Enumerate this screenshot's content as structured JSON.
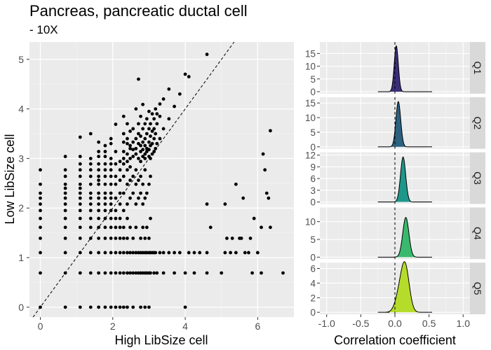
{
  "figure": {
    "title": "Pancreas, pancreatic ductal cell",
    "subtitle": "- 10X"
  },
  "chart_data": [
    {
      "type": "scatter",
      "xlabel": "High LibSize cell",
      "ylabel": "Low LibSize cell",
      "xlim": [
        -0.3,
        7.0
      ],
      "ylim": [
        -0.2,
        5.35
      ],
      "xticks": [
        "0",
        "2",
        "4",
        "6"
      ],
      "yticks": [
        "0",
        "1",
        "2",
        "3",
        "4",
        "5"
      ],
      "reference_line": "y = x (dashed)",
      "grid": true,
      "note": "approximate reconstruction of point cloud",
      "points": [
        [
          0,
          0
        ],
        [
          0,
          0.69
        ],
        [
          0,
          1.1
        ],
        [
          0,
          1.39
        ],
        [
          0,
          1.61
        ],
        [
          0,
          1.79
        ],
        [
          0,
          1.95
        ],
        [
          0,
          2.08
        ],
        [
          0,
          2.2
        ],
        [
          0,
          2.3
        ],
        [
          0,
          2.48
        ],
        [
          0,
          2.77
        ],
        [
          0.69,
          0
        ],
        [
          0.69,
          0.69
        ],
        [
          0.69,
          1.1
        ],
        [
          0.69,
          1.39
        ],
        [
          0.69,
          1.61
        ],
        [
          0.69,
          1.79
        ],
        [
          0.69,
          1.95
        ],
        [
          0.69,
          2.08
        ],
        [
          0.69,
          2.2
        ],
        [
          0.69,
          2.3
        ],
        [
          0.69,
          2.4
        ],
        [
          0.69,
          2.48
        ],
        [
          0.69,
          2.64
        ],
        [
          0.69,
          2.77
        ],
        [
          0.69,
          3.04
        ],
        [
          1.1,
          0
        ],
        [
          1.1,
          0.69
        ],
        [
          1.1,
          1.1
        ],
        [
          1.1,
          1.39
        ],
        [
          1.1,
          1.61
        ],
        [
          1.1,
          1.79
        ],
        [
          1.1,
          1.95
        ],
        [
          1.1,
          2.08
        ],
        [
          1.1,
          2.2
        ],
        [
          1.1,
          2.3
        ],
        [
          1.1,
          2.4
        ],
        [
          1.1,
          2.48
        ],
        [
          1.1,
          2.64
        ],
        [
          1.1,
          2.77
        ],
        [
          1.1,
          2.89
        ],
        [
          1.1,
          3.04
        ],
        [
          1.1,
          3.43
        ],
        [
          1.39,
          0
        ],
        [
          1.39,
          0.69
        ],
        [
          1.39,
          1.1
        ],
        [
          1.39,
          1.39
        ],
        [
          1.39,
          1.61
        ],
        [
          1.39,
          1.79
        ],
        [
          1.39,
          1.95
        ],
        [
          1.39,
          2.08
        ],
        [
          1.39,
          2.2
        ],
        [
          1.39,
          2.3
        ],
        [
          1.39,
          2.48
        ],
        [
          1.39,
          2.64
        ],
        [
          1.39,
          2.77
        ],
        [
          1.39,
          2.89
        ],
        [
          1.39,
          3.0
        ],
        [
          1.39,
          3.5
        ],
        [
          1.61,
          0
        ],
        [
          1.61,
          0.69
        ],
        [
          1.61,
          1.1
        ],
        [
          1.61,
          1.39
        ],
        [
          1.61,
          1.61
        ],
        [
          1.61,
          1.79
        ],
        [
          1.61,
          1.95
        ],
        [
          1.61,
          2.08
        ],
        [
          1.61,
          2.2
        ],
        [
          1.61,
          2.3
        ],
        [
          1.61,
          2.48
        ],
        [
          1.61,
          2.56
        ],
        [
          1.61,
          2.64
        ],
        [
          1.61,
          2.77
        ],
        [
          1.61,
          2.89
        ],
        [
          1.61,
          3.04
        ],
        [
          1.61,
          3.14
        ],
        [
          1.61,
          3.33
        ],
        [
          1.79,
          0
        ],
        [
          1.79,
          0.69
        ],
        [
          1.79,
          1.1
        ],
        [
          1.79,
          1.39
        ],
        [
          1.79,
          1.61
        ],
        [
          1.79,
          1.79
        ],
        [
          1.79,
          1.95
        ],
        [
          1.79,
          2.08
        ],
        [
          1.79,
          2.2
        ],
        [
          1.79,
          2.3
        ],
        [
          1.79,
          2.48
        ],
        [
          1.79,
          2.64
        ],
        [
          1.79,
          2.77
        ],
        [
          1.79,
          2.89
        ],
        [
          1.79,
          3.04
        ],
        [
          1.79,
          3.14
        ],
        [
          1.79,
          3.26
        ],
        [
          1.95,
          0
        ],
        [
          1.95,
          0.69
        ],
        [
          1.95,
          1.1
        ],
        [
          1.95,
          1.39
        ],
        [
          1.95,
          1.61
        ],
        [
          1.95,
          1.79
        ],
        [
          1.95,
          1.95
        ],
        [
          1.95,
          2.08
        ],
        [
          1.95,
          2.2
        ],
        [
          1.95,
          2.3
        ],
        [
          1.95,
          2.48
        ],
        [
          1.95,
          2.64
        ],
        [
          1.95,
          2.77
        ],
        [
          1.95,
          2.89
        ],
        [
          1.95,
          3.0
        ],
        [
          1.95,
          3.3
        ],
        [
          1.95,
          3.4
        ],
        [
          2.08,
          0
        ],
        [
          2.08,
          0.69
        ],
        [
          2.08,
          1.1
        ],
        [
          2.08,
          1.39
        ],
        [
          2.08,
          1.61
        ],
        [
          2.08,
          1.79
        ],
        [
          2.08,
          1.95
        ],
        [
          2.08,
          2.2
        ],
        [
          2.08,
          2.48
        ],
        [
          2.08,
          2.64
        ],
        [
          2.08,
          2.89
        ],
        [
          2.08,
          3.14
        ],
        [
          2.08,
          3.69
        ],
        [
          2.2,
          0
        ],
        [
          2.2,
          0.69
        ],
        [
          2.2,
          1.1
        ],
        [
          2.2,
          1.39
        ],
        [
          2.2,
          1.61
        ],
        [
          2.2,
          1.79
        ],
        [
          2.2,
          2.08
        ],
        [
          2.2,
          2.3
        ],
        [
          2.2,
          2.56
        ],
        [
          2.2,
          2.77
        ],
        [
          2.2,
          2.94
        ],
        [
          2.3,
          0
        ],
        [
          2.3,
          0.69
        ],
        [
          2.3,
          1.1
        ],
        [
          2.3,
          1.39
        ],
        [
          2.3,
          1.61
        ],
        [
          2.3,
          1.95
        ],
        [
          2.3,
          2.3
        ],
        [
          2.3,
          2.64
        ],
        [
          2.3,
          2.89
        ],
        [
          2.3,
          3.0
        ],
        [
          2.3,
          3.14
        ],
        [
          2.3,
          3.33
        ],
        [
          2.3,
          3.5
        ],
        [
          2.3,
          3.85
        ],
        [
          2.4,
          0
        ],
        [
          2.4,
          0.69
        ],
        [
          2.4,
          1.1
        ],
        [
          2.4,
          1.39
        ],
        [
          2.4,
          1.79
        ],
        [
          2.4,
          2.08
        ],
        [
          2.4,
          2.48
        ],
        [
          2.4,
          2.77
        ],
        [
          2.4,
          2.94
        ],
        [
          2.4,
          3.09
        ],
        [
          2.4,
          3.3
        ],
        [
          2.4,
          3.4
        ],
        [
          2.4,
          3.7
        ],
        [
          2.48,
          0.69
        ],
        [
          2.48,
          1.1
        ],
        [
          2.48,
          1.61
        ],
        [
          2.48,
          2.2
        ],
        [
          2.48,
          2.56
        ],
        [
          2.48,
          2.83
        ],
        [
          2.48,
          3.0
        ],
        [
          2.48,
          3.2
        ],
        [
          2.48,
          3.26
        ],
        [
          2.48,
          3.55
        ],
        [
          2.56,
          0
        ],
        [
          2.56,
          0.69
        ],
        [
          2.56,
          1.1
        ],
        [
          2.56,
          1.39
        ],
        [
          2.56,
          2.3
        ],
        [
          2.56,
          2.64
        ],
        [
          2.56,
          3.04
        ],
        [
          2.56,
          3.18
        ],
        [
          2.56,
          3.33
        ],
        [
          2.56,
          3.6
        ],
        [
          2.64,
          0.69
        ],
        [
          2.64,
          1.1
        ],
        [
          2.64,
          1.61
        ],
        [
          2.64,
          2.08
        ],
        [
          2.64,
          2.48
        ],
        [
          2.64,
          2.77
        ],
        [
          2.64,
          3.09
        ],
        [
          2.64,
          3.2
        ],
        [
          2.64,
          3.4
        ],
        [
          2.64,
          4.0
        ],
        [
          2.71,
          0.69
        ],
        [
          2.71,
          1.1
        ],
        [
          2.71,
          2.2
        ],
        [
          2.71,
          2.56
        ],
        [
          2.71,
          3.0
        ],
        [
          2.71,
          3.3
        ],
        [
          2.71,
          3.5
        ],
        [
          2.71,
          3.7
        ],
        [
          2.71,
          4.6
        ],
        [
          2.77,
          0
        ],
        [
          2.77,
          0.69
        ],
        [
          2.77,
          1.1
        ],
        [
          2.77,
          1.39
        ],
        [
          2.77,
          2.3
        ],
        [
          2.77,
          2.64
        ],
        [
          2.77,
          2.94
        ],
        [
          2.77,
          3.14
        ],
        [
          2.77,
          3.26
        ],
        [
          2.77,
          3.45
        ],
        [
          2.77,
          3.85
        ],
        [
          2.83,
          0.69
        ],
        [
          2.83,
          1.1
        ],
        [
          2.83,
          1.61
        ],
        [
          2.83,
          2.08
        ],
        [
          2.83,
          2.48
        ],
        [
          2.83,
          3.04
        ],
        [
          2.83,
          3.18
        ],
        [
          2.83,
          3.33
        ],
        [
          2.83,
          3.6
        ],
        [
          2.83,
          4.09
        ],
        [
          2.89,
          0
        ],
        [
          2.89,
          0.69
        ],
        [
          2.89,
          1.1
        ],
        [
          2.89,
          1.39
        ],
        [
          2.89,
          2.2
        ],
        [
          2.89,
          2.77
        ],
        [
          2.89,
          3.0
        ],
        [
          2.89,
          3.09
        ],
        [
          2.89,
          3.26
        ],
        [
          2.89,
          3.4
        ],
        [
          2.89,
          3.7
        ],
        [
          2.94,
          0.69
        ],
        [
          2.94,
          1.1
        ],
        [
          2.94,
          1.61
        ],
        [
          2.94,
          2.3
        ],
        [
          2.94,
          3.14
        ],
        [
          2.94,
          3.2
        ],
        [
          2.94,
          3.5
        ],
        [
          2.94,
          3.8
        ],
        [
          3.0,
          0
        ],
        [
          3.0,
          0.69
        ],
        [
          3.0,
          1.1
        ],
        [
          3.0,
          1.39
        ],
        [
          3.0,
          2.48
        ],
        [
          3.0,
          3.04
        ],
        [
          3.0,
          3.18
        ],
        [
          3.0,
          3.33
        ],
        [
          3.0,
          3.6
        ],
        [
          3.0,
          3.95
        ],
        [
          3.04,
          0.69
        ],
        [
          3.04,
          1.1
        ],
        [
          3.04,
          1.79
        ],
        [
          3.04,
          2.64
        ],
        [
          3.04,
          3.0
        ],
        [
          3.04,
          3.26
        ],
        [
          3.04,
          3.45
        ],
        [
          3.04,
          3.7
        ],
        [
          3.09,
          1.1
        ],
        [
          3.09,
          3.09
        ],
        [
          3.09,
          3.3
        ],
        [
          3.09,
          3.55
        ],
        [
          3.09,
          3.9
        ],
        [
          3.14,
          0.69
        ],
        [
          3.14,
          1.1
        ],
        [
          3.14,
          3.14
        ],
        [
          3.14,
          3.4
        ],
        [
          3.14,
          3.6
        ],
        [
          3.14,
          3.8
        ],
        [
          3.18,
          1.1
        ],
        [
          3.18,
          3.2
        ],
        [
          3.18,
          3.5
        ],
        [
          3.18,
          4.0
        ],
        [
          3.22,
          0.69
        ],
        [
          3.22,
          3.3
        ],
        [
          3.22,
          3.7
        ],
        [
          3.22,
          3.9
        ],
        [
          3.3,
          1.1
        ],
        [
          3.3,
          3.4
        ],
        [
          3.3,
          3.85
        ],
        [
          3.3,
          4.1
        ],
        [
          3.4,
          0.69
        ],
        [
          3.4,
          1.1
        ],
        [
          3.4,
          3.6
        ],
        [
          3.4,
          4.2
        ],
        [
          3.55,
          1.1
        ],
        [
          3.55,
          3.8
        ],
        [
          3.55,
          4.4
        ],
        [
          3.7,
          0.69
        ],
        [
          3.7,
          1.1
        ],
        [
          3.7,
          4.05
        ],
        [
          3.85,
          1.1
        ],
        [
          3.85,
          4.3
        ],
        [
          4.0,
          0
        ],
        [
          4.0,
          0.69
        ],
        [
          4.0,
          4.7
        ],
        [
          4.1,
          1.1
        ],
        [
          4.1,
          4.65
        ],
        [
          4.25,
          0.69
        ],
        [
          4.25,
          1.1
        ],
        [
          4.4,
          1.1
        ],
        [
          4.6,
          0.69
        ],
        [
          4.6,
          1.1
        ],
        [
          4.6,
          2.08
        ],
        [
          4.6,
          5.1
        ],
        [
          5.0,
          0.69
        ],
        [
          5.1,
          1.1
        ],
        [
          5.1,
          2.08
        ],
        [
          5.15,
          1.39
        ],
        [
          5.25,
          1.1
        ],
        [
          5.3,
          1.39
        ],
        [
          5.4,
          1.1
        ],
        [
          5.5,
          1.39
        ],
        [
          5.55,
          1.39
        ],
        [
          5.65,
          1.1
        ],
        [
          5.75,
          1.1
        ],
        [
          5.8,
          1.39
        ],
        [
          5.85,
          0.69
        ],
        [
          6.0,
          1.1
        ],
        [
          6.1,
          0.69
        ],
        [
          6.15,
          3.09
        ],
        [
          6.2,
          2.77
        ],
        [
          6.25,
          2.3
        ],
        [
          6.3,
          2.2
        ],
        [
          6.35,
          1.61
        ],
        [
          6.35,
          3.56
        ],
        [
          6.7,
          0.69
        ],
        [
          5.9,
          1.79
        ],
        [
          6.1,
          1.61
        ],
        [
          5.4,
          2.48
        ],
        [
          4.7,
          1.61
        ],
        [
          5.6,
          2.2
        ]
      ]
    },
    {
      "type": "ridgeline-density",
      "xlabel": "Correlation coefficient",
      "xlim": [
        -1.1,
        1.1
      ],
      "xticks": [
        "-1.0",
        "-0.5",
        "0.0",
        "0.5",
        "1.0"
      ],
      "reference_line": "x = 0 (dashed)",
      "series": [
        {
          "name": "Q1",
          "peak_x": 0.02,
          "sd": 0.03,
          "peak": 18,
          "yticks": [
            "0",
            "5",
            "10",
            "15"
          ],
          "ymax": 19.5,
          "color": "#3b2f7a"
        },
        {
          "name": "Q2",
          "peak_x": 0.05,
          "sd": 0.035,
          "peak": 15.5,
          "yticks": [
            "0",
            "5",
            "10",
            "15"
          ],
          "ymax": 17,
          "color": "#2c6180"
        },
        {
          "name": "Q3",
          "peak_x": 0.12,
          "sd": 0.038,
          "peak": 11.5,
          "yticks": [
            "0",
            "3",
            "6",
            "9",
            "12"
          ],
          "ymax": 12.7,
          "color": "#1f968a"
        },
        {
          "name": "Q4",
          "peak_x": 0.16,
          "sd": 0.045,
          "peak": 11.2,
          "yticks": [
            "0",
            "5",
            "10"
          ],
          "ymax": 14,
          "color": "#3ab96e"
        },
        {
          "name": "Q5",
          "peak_x": 0.15,
          "sd": 0.06,
          "peak": 6.2,
          "yticks": [
            "0",
            "2",
            "4",
            "6"
          ],
          "ymax": 6.8,
          "color": "#b6dc2b"
        }
      ]
    }
  ]
}
